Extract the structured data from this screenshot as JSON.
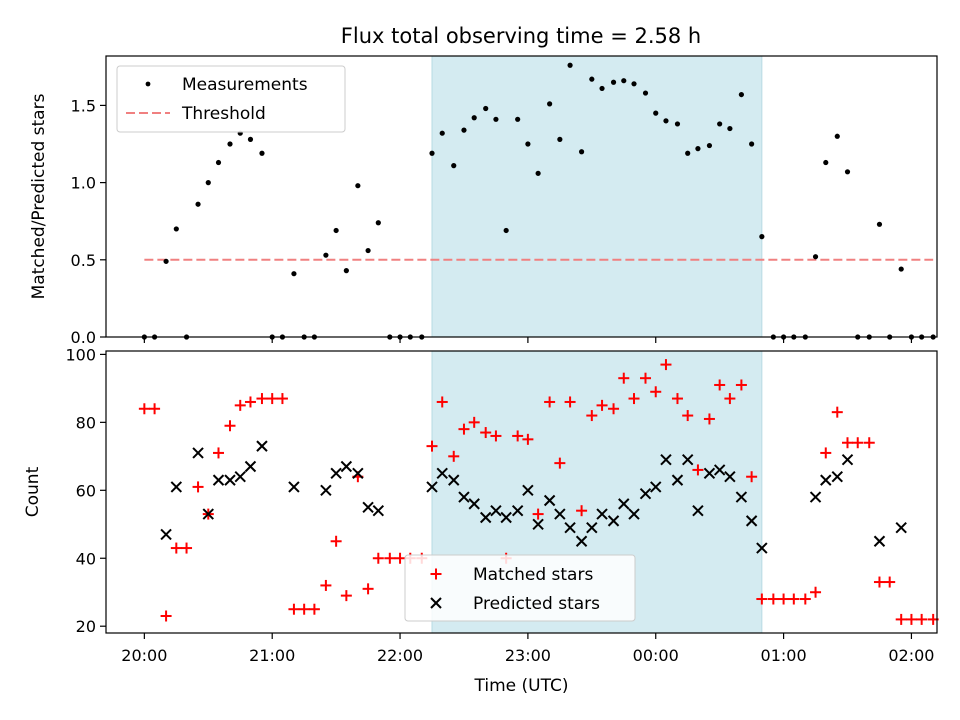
{
  "chart_data": [
    {
      "type": "scatter",
      "title": "Flux total observing time = 2.58 h",
      "ylabel": "Matched/Predicted stars",
      "xlabel": "",
      "x_unit": "hours since 20:00 UTC",
      "xlim": [
        -0.3,
        6.2
      ],
      "ylim": [
        0,
        1.82
      ],
      "yticks": [
        0.0,
        0.5,
        1.0,
        1.5
      ],
      "ytick_labels": [
        "0.0",
        "0.5",
        "1.0",
        "1.5"
      ],
      "xticks": [
        0,
        1,
        2,
        3,
        4,
        5,
        6
      ],
      "highlight_span": [
        2.25,
        4.83
      ],
      "highlight_color": "#d4ebf1",
      "legend_position": "upper left",
      "series": [
        {
          "name": "Measurements",
          "style": "dot",
          "color": "#000000",
          "x": [
            0.0,
            0.08,
            0.17,
            0.25,
            0.33,
            0.42,
            0.5,
            0.58,
            0.67,
            0.75,
            0.83,
            0.92,
            1.0,
            1.08,
            1.17,
            1.25,
            1.33,
            1.42,
            1.5,
            1.58,
            1.67,
            1.75,
            1.83,
            1.92,
            2.0,
            2.08,
            2.17,
            2.25,
            2.33,
            2.42,
            2.5,
            2.58,
            2.67,
            2.75,
            2.83,
            2.92,
            3.0,
            3.08,
            3.17,
            3.25,
            3.33,
            3.42,
            3.5,
            3.58,
            3.67,
            3.75,
            3.83,
            3.92,
            4.0,
            4.08,
            4.17,
            4.25,
            4.33,
            4.42,
            4.5,
            4.58,
            4.67,
            4.75,
            4.83,
            4.92,
            5.0,
            5.08,
            5.17,
            5.25,
            5.33,
            5.42,
            5.5,
            5.58,
            5.67,
            5.75,
            5.83,
            5.92,
            6.0,
            6.08,
            6.17
          ],
          "y": [
            0.0,
            0.0,
            0.49,
            0.7,
            0.0,
            0.86,
            1.0,
            1.13,
            1.25,
            1.32,
            1.28,
            1.19,
            0.0,
            0.0,
            0.41,
            0.0,
            0.0,
            0.53,
            0.69,
            0.43,
            0.98,
            0.56,
            0.74,
            0.0,
            0.0,
            0.0,
            0.0,
            1.19,
            1.32,
            1.11,
            1.34,
            1.42,
            1.48,
            1.41,
            0.69,
            1.41,
            1.25,
            1.06,
            1.51,
            1.28,
            1.76,
            1.2,
            1.67,
            1.61,
            1.65,
            1.66,
            1.64,
            1.58,
            1.45,
            1.4,
            1.38,
            1.19,
            1.22,
            1.24,
            1.38,
            1.35,
            1.57,
            1.25,
            0.65,
            0.0,
            0.0,
            0.0,
            0.0,
            0.52,
            1.13,
            1.3,
            1.07,
            0.0,
            0.0,
            0.73,
            0.0,
            0.44,
            0.0,
            0.0,
            0.0
          ]
        },
        {
          "name": "Threshold",
          "style": "dashed",
          "color": "#f08080",
          "x": [
            0.0,
            6.17
          ],
          "y": [
            0.5,
            0.5
          ]
        }
      ]
    },
    {
      "type": "scatter",
      "title": "",
      "ylabel": "Count",
      "xlabel": "Time (UTC)",
      "x_unit": "hours since 20:00 UTC",
      "xlim": [
        -0.3,
        6.2
      ],
      "ylim": [
        18,
        101
      ],
      "yticks": [
        20,
        40,
        60,
        80,
        100
      ],
      "ytick_labels": [
        "20",
        "40",
        "60",
        "80",
        "100"
      ],
      "xticks": [
        0,
        1,
        2,
        3,
        4,
        5,
        6
      ],
      "xtick_labels": [
        "20:00",
        "21:00",
        "22:00",
        "23:00",
        "00:00",
        "01:00",
        "02:00"
      ],
      "highlight_span": [
        2.25,
        4.83
      ],
      "highlight_color": "#d4ebf1",
      "legend_position": "lower center",
      "series": [
        {
          "name": "Matched stars",
          "style": "plus",
          "color": "#ff0000",
          "x": [
            0.0,
            0.08,
            0.17,
            0.25,
            0.33,
            0.42,
            0.5,
            0.58,
            0.67,
            0.75,
            0.83,
            0.92,
            1.0,
            1.08,
            1.17,
            1.25,
            1.33,
            1.42,
            1.5,
            1.58,
            1.67,
            1.75,
            1.83,
            1.92,
            2.0,
            2.08,
            2.17,
            2.25,
            2.33,
            2.42,
            2.5,
            2.58,
            2.67,
            2.75,
            2.83,
            2.92,
            3.0,
            3.08,
            3.17,
            3.25,
            3.33,
            3.42,
            3.5,
            3.58,
            3.67,
            3.75,
            3.83,
            3.92,
            4.0,
            4.08,
            4.17,
            4.25,
            4.33,
            4.42,
            4.5,
            4.58,
            4.67,
            4.75,
            4.83,
            4.92,
            5.0,
            5.08,
            5.17,
            5.25,
            5.33,
            5.42,
            5.5,
            5.58,
            5.67,
            5.75,
            5.83,
            5.92,
            6.0,
            6.08,
            6.17
          ],
          "y": [
            84,
            84,
            23,
            43,
            43,
            61,
            53,
            71,
            79,
            85,
            86,
            87,
            87,
            87,
            25,
            25,
            25,
            32,
            45,
            29,
            64,
            31,
            40,
            40,
            40,
            40,
            40,
            73,
            86,
            70,
            78,
            80,
            77,
            76,
            40,
            76,
            75,
            53,
            86,
            68,
            86,
            54,
            82,
            85,
            84,
            93,
            87,
            93,
            89,
            97,
            87,
            82,
            66,
            81,
            91,
            87,
            91,
            64,
            28,
            28,
            28,
            28,
            28,
            30,
            71,
            83,
            74,
            74,
            74,
            33,
            33,
            22,
            22,
            22,
            22
          ]
        },
        {
          "name": "Predicted stars",
          "style": "x",
          "color": "#000000",
          "x": [
            0.17,
            0.25,
            0.42,
            0.5,
            0.58,
            0.67,
            0.75,
            0.83,
            0.92,
            1.17,
            1.42,
            1.5,
            1.58,
            1.67,
            1.75,
            1.83,
            2.25,
            2.33,
            2.42,
            2.5,
            2.58,
            2.67,
            2.75,
            2.83,
            2.92,
            3.0,
            3.08,
            3.17,
            3.25,
            3.33,
            3.42,
            3.5,
            3.58,
            3.67,
            3.75,
            3.83,
            3.92,
            4.0,
            4.08,
            4.17,
            4.25,
            4.33,
            4.42,
            4.5,
            4.58,
            4.67,
            4.75,
            4.83,
            5.25,
            5.33,
            5.42,
            5.5,
            5.75,
            5.92
          ],
          "y": [
            47,
            61,
            71,
            53,
            63,
            63,
            64,
            67,
            73,
            61,
            60,
            65,
            67,
            65,
            55,
            54,
            61,
            65,
            63,
            58,
            56,
            52,
            54,
            52,
            54,
            60,
            50,
            57,
            53,
            49,
            45,
            49,
            53,
            51,
            56,
            53,
            59,
            61,
            69,
            63,
            69,
            54,
            65,
            66,
            64,
            58,
            51,
            43,
            58,
            63,
            64,
            69,
            45,
            49
          ]
        }
      ]
    }
  ]
}
